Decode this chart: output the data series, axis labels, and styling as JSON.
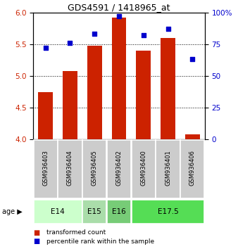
{
  "title": "GDS4591 / 1418965_at",
  "samples": [
    "GSM936403",
    "GSM936404",
    "GSM936405",
    "GSM936402",
    "GSM936400",
    "GSM936401",
    "GSM936406"
  ],
  "transformed_counts": [
    4.75,
    5.08,
    5.48,
    5.92,
    5.4,
    5.6,
    4.08
  ],
  "percentile_ranks": [
    72,
    76,
    83,
    97,
    82,
    87,
    63
  ],
  "ylim_left": [
    4.0,
    6.0
  ],
  "ylim_right": [
    0,
    100
  ],
  "yticks_left": [
    4.0,
    4.5,
    5.0,
    5.5,
    6.0
  ],
  "yticks_right": [
    0,
    25,
    50,
    75,
    100
  ],
  "bar_color": "#cc2200",
  "dot_color": "#0000cc",
  "age_groups": [
    {
      "label": "E14",
      "samples": [
        0,
        1
      ],
      "color": "#ccffcc"
    },
    {
      "label": "E15",
      "samples": [
        2
      ],
      "color": "#aaddaa"
    },
    {
      "label": "E16",
      "samples": [
        3
      ],
      "color": "#77cc77"
    },
    {
      "label": "E17.5",
      "samples": [
        4,
        5,
        6
      ],
      "color": "#55dd55"
    }
  ],
  "legend_bar_label": "transformed count",
  "legend_dot_label": "percentile rank within the sample",
  "bar_color_label": "#cc2200",
  "dot_color_label": "#0000cc",
  "bar_width": 0.6,
  "sample_box_color": "#cccccc",
  "figure_bg": "#ffffff"
}
